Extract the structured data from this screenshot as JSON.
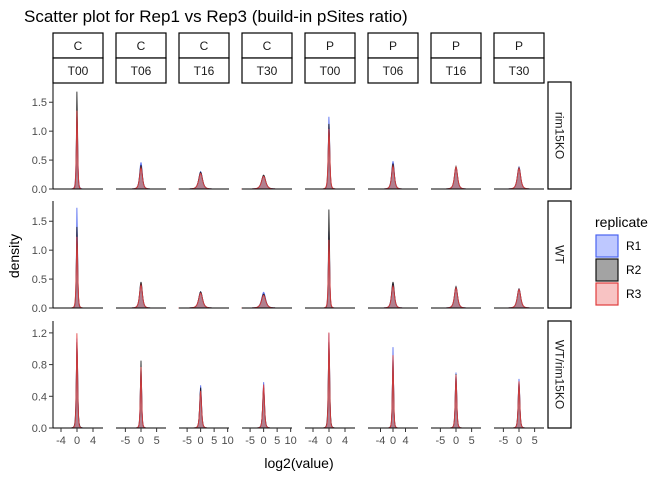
{
  "chart_data": {
    "type": "density",
    "title": "Scatter plot for Rep1 vs Rep3 (build-in pSites ratio)",
    "xlabel": "log2(value)",
    "ylabel": "density",
    "col_strips_top": [
      "C",
      "C",
      "C",
      "C",
      "P",
      "P",
      "P",
      "P"
    ],
    "col_strips_bottom": [
      "T00",
      "T06",
      "T16",
      "T30",
      "T00",
      "T06",
      "T16",
      "T30"
    ],
    "row_strips": [
      "rim15KO",
      "WT",
      "WT/rim15KO"
    ],
    "facet_columns": [
      {
        "xlim": [
          -6.0,
          6.5
        ],
        "ticks": [
          -4,
          0,
          4
        ]
      },
      {
        "xlim": [
          -8.0,
          8.0
        ],
        "ticks": [
          -5,
          0,
          5
        ]
      },
      {
        "xlim": [
          -8.0,
          10.5
        ],
        "ticks": [
          -5,
          0,
          5,
          10
        ]
      },
      {
        "xlim": [
          -8.0,
          10.5
        ],
        "ticks": [
          -5,
          0,
          5,
          10
        ]
      },
      {
        "xlim": [
          -6.0,
          6.5
        ],
        "ticks": [
          -4,
          0,
          4
        ]
      },
      {
        "xlim": [
          -8.0,
          8.0
        ],
        "ticks": [
          -4,
          0,
          4
        ]
      },
      {
        "xlim": [
          -8.0,
          8.0
        ],
        "ticks": [
          -5,
          0,
          5
        ]
      },
      {
        "xlim": [
          -8.0,
          8.0
        ],
        "ticks": [
          -5,
          0,
          5
        ]
      }
    ],
    "facet_rows": [
      {
        "ylim": [
          0,
          1.85
        ],
        "ticks": [
          0.0,
          0.5,
          1.0,
          1.5
        ]
      },
      {
        "ylim": [
          0,
          1.85
        ],
        "ticks": [
          0.0,
          0.5,
          1.0,
          1.5
        ]
      },
      {
        "ylim": [
          0,
          1.35
        ],
        "ticks": [
          0.0,
          0.4,
          0.8,
          1.2
        ]
      }
    ],
    "legend": {
      "title": "replicate",
      "position": "right",
      "items": [
        {
          "label": "R1",
          "fill": "#6f86ff",
          "stroke": "#4a63f0"
        },
        {
          "label": "R2",
          "fill": "#333333",
          "stroke": "#111111"
        },
        {
          "label": "R3",
          "fill": "#f07a7a",
          "stroke": "#e03c3c"
        }
      ]
    },
    "series_peaks": [
      [
        [
          1.27,
          1.73,
          1.38
        ],
        [
          0.46,
          0.41,
          0.37
        ],
        [
          0.3,
          0.29,
          0.27
        ],
        [
          0.23,
          0.24,
          0.22
        ],
        [
          1.27,
          1.14,
          1.05
        ],
        [
          0.48,
          0.44,
          0.4
        ],
        [
          0.37,
          0.39,
          0.38
        ],
        [
          0.38,
          0.37,
          0.36
        ]
      ],
      [
        [
          1.78,
          1.43,
          1.25
        ],
        [
          0.42,
          0.45,
          0.4
        ],
        [
          0.28,
          0.28,
          0.26
        ],
        [
          0.27,
          0.24,
          0.22
        ],
        [
          1.35,
          1.75,
          1.2
        ],
        [
          0.42,
          0.45,
          0.38
        ],
        [
          0.36,
          0.37,
          0.35
        ],
        [
          0.33,
          0.33,
          0.32
        ]
      ],
      [
        [
          1.15,
          1.1,
          1.22
        ],
        [
          0.75,
          0.85,
          0.77
        ],
        [
          0.54,
          0.51,
          0.47
        ],
        [
          0.58,
          0.51,
          0.55
        ],
        [
          1.22,
          1.1,
          1.23
        ],
        [
          1.02,
          0.9,
          0.92
        ],
        [
          0.7,
          0.68,
          0.67
        ],
        [
          0.62,
          0.58,
          0.59
        ]
      ]
    ],
    "series_widths": [
      [
        [
          0.45,
          0.35,
          0.42
        ],
        [
          1.1,
          1.15,
          1.2
        ],
        [
          1.8,
          1.85,
          1.9
        ],
        [
          2.0,
          2.0,
          2.1
        ],
        [
          0.45,
          0.5,
          0.55
        ],
        [
          1.1,
          1.15,
          1.2
        ],
        [
          1.3,
          1.3,
          1.35
        ],
        [
          1.4,
          1.4,
          1.45
        ]
      ],
      [
        [
          0.35,
          0.42,
          0.47
        ],
        [
          1.2,
          1.15,
          1.25
        ],
        [
          1.85,
          1.85,
          1.95
        ],
        [
          1.95,
          2.0,
          2.1
        ],
        [
          0.4,
          0.35,
          0.45
        ],
        [
          1.2,
          1.15,
          1.25
        ],
        [
          1.35,
          1.3,
          1.4
        ],
        [
          1.45,
          1.45,
          1.5
        ]
      ],
      [
        [
          0.42,
          0.45,
          0.4
        ],
        [
          0.55,
          0.5,
          0.55
        ],
        [
          0.85,
          0.88,
          0.92
        ],
        [
          0.82,
          0.88,
          0.85
        ],
        [
          0.4,
          0.45,
          0.4
        ],
        [
          0.45,
          0.5,
          0.5
        ],
        [
          0.6,
          0.62,
          0.63
        ],
        [
          0.65,
          0.68,
          0.66
        ]
      ]
    ]
  }
}
